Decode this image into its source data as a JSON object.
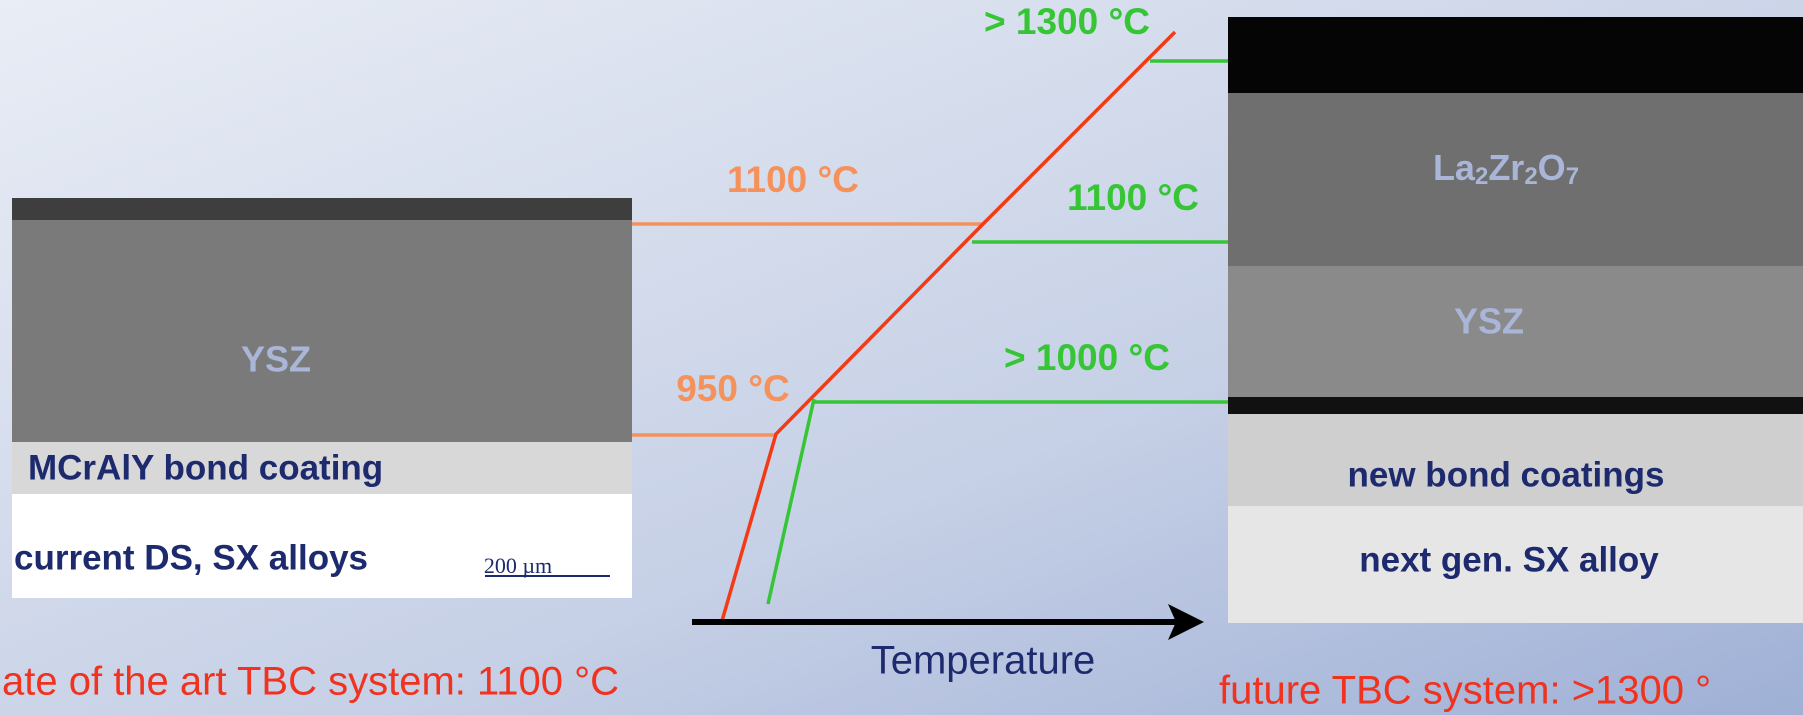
{
  "diagram": {
    "left_image": {
      "layers": {
        "ysz": "YSZ",
        "bond_coat": "MCrAlY bond coating",
        "alloy": "current DS, SX alloys"
      },
      "scale_bar": "200 µm"
    },
    "right_image": {
      "layers": {
        "top_coat": [
          "La",
          "2",
          "Zr",
          "2",
          "O",
          "7"
        ],
        "ysz": "YSZ",
        "bond_coat": "new bond coatings",
        "alloy": "next gen. SX alloy"
      }
    },
    "current_labels": {
      "top": "1100 °C",
      "interface": "950 °C"
    },
    "future_labels": {
      "surface": "> 1300 °C",
      "top_coat_interface": "1100 °C",
      "interface": "> 1000 °C"
    },
    "axis_label": "Temperature",
    "captions": {
      "current": "ate of the art TBC system: 1100 °C",
      "future": "future TBC system: >1300 °"
    }
  }
}
